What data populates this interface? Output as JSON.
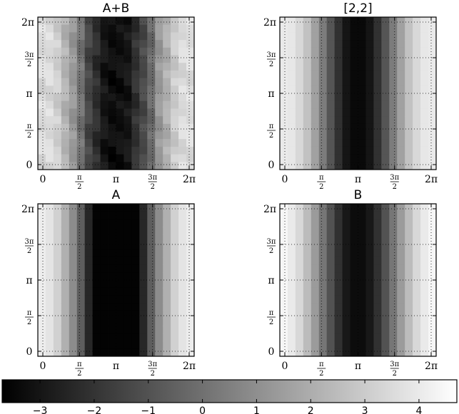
{
  "chart_data": {
    "type": "heatmap",
    "colormap": "gray",
    "x_range": [
      0,
      6.2832
    ],
    "y_range": [
      0,
      6.2832
    ],
    "x_ticks": [
      "0",
      "π/2",
      "π",
      "3π/2",
      "2π"
    ],
    "y_ticks": [
      "0",
      "π/2",
      "π",
      "3π/2",
      "2π"
    ],
    "grid": true,
    "panels": [
      {
        "title": "A+B",
        "columns": [
          3.5,
          3.5,
          3.1,
          2.2,
          1.3,
          0.1,
          -1.4,
          -2.2,
          -3.0,
          -3.3,
          -3.2,
          -3.0,
          -2.1,
          -1.3,
          -0.2,
          1.3,
          2.1,
          3.0,
          3.5,
          3.6
        ],
        "noise": [
          0.0,
          0.3,
          -0.2,
          0.4,
          -0.3,
          0.2,
          0.0,
          -0.4,
          0.3,
          -0.1
        ]
      },
      {
        "title": "[2,2]",
        "columns": [
          4.0,
          3.9,
          3.4,
          2.7,
          1.6,
          0.4,
          -0.9,
          -2.1,
          -3.0,
          -3.4,
          -3.4,
          -3.0,
          -2.1,
          -0.9,
          0.4,
          1.6,
          2.7,
          3.4,
          3.9,
          4.0
        ],
        "noise": []
      },
      {
        "title": "A",
        "columns": [
          4.1,
          3.8,
          3.2,
          2.1,
          0.9,
          -0.6,
          -2.4,
          -3.6,
          -3.6,
          -3.6,
          -3.6,
          -3.6,
          -3.6,
          -2.4,
          -0.6,
          0.9,
          2.1,
          3.2,
          3.8,
          4.1
        ],
        "noise": []
      },
      {
        "title": "B",
        "columns": [
          4.4,
          4.0,
          3.4,
          2.5,
          1.4,
          0.2,
          -1.0,
          -2.1,
          -2.9,
          -3.3,
          -3.3,
          -2.9,
          -2.1,
          -1.0,
          0.2,
          1.4,
          2.5,
          3.4,
          4.0,
          4.4
        ],
        "noise": []
      }
    ],
    "colorbar": {
      "range": [
        -3.7,
        4.7
      ],
      "ticks": [
        -3,
        -2,
        -1,
        0,
        1,
        2,
        3,
        4
      ],
      "tick_labels": [
        "−3",
        "−2",
        "−1",
        "0",
        "1",
        "2",
        "3",
        "4"
      ]
    }
  }
}
